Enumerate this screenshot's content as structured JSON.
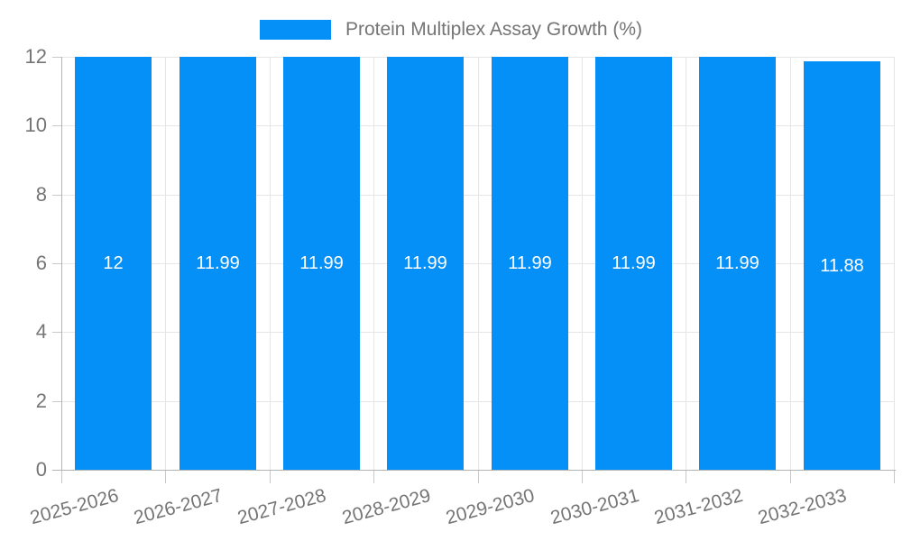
{
  "chart_data": {
    "type": "bar",
    "title": "Protein Multiplex Assay Growth (%)",
    "categories": [
      "2025-2026",
      "2026-2027",
      "2027-2028",
      "2028-2029",
      "2029-2030",
      "2030-2031",
      "2031-2032",
      "2032-2033"
    ],
    "values": [
      12,
      11.99,
      11.99,
      11.99,
      11.99,
      11.99,
      11.99,
      11.88
    ],
    "value_labels": [
      "12",
      "11.99",
      "11.99",
      "11.99",
      "11.99",
      "11.99",
      "11.99",
      "11.88"
    ],
    "xlabel": "",
    "ylabel": "",
    "ylim": [
      0,
      12
    ],
    "y_ticks": [
      0,
      2,
      4,
      6,
      8,
      10,
      12
    ],
    "grid": true,
    "legend_position": "top",
    "bar_color": "#0590f8",
    "bar_label_color": "#ffffff",
    "axis_text_color": "#757575",
    "gridline_color": "#e6e6e6",
    "axis_line_color": "#b3b3b3"
  }
}
